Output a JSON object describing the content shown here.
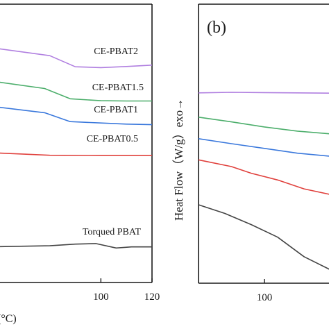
{
  "chart_data": [
    {
      "type": "line",
      "panel": "left",
      "title": "",
      "xlabel": "(°C)",
      "ylabel": "",
      "xlim": [
        60,
        120
      ],
      "ylim": [
        0,
        1
      ],
      "xticks": [
        100,
        120
      ],
      "grid": false,
      "legend": "inline labels at right",
      "series": [
        {
          "name": "CE-PBAT2",
          "color": "#b07fe0",
          "points": [
            [
              60,
              0.84
            ],
            [
              80,
              0.815
            ],
            [
              90,
              0.775
            ],
            [
              100,
              0.772
            ],
            [
              110,
              0.776
            ],
            [
              120,
              0.781
            ]
          ]
        },
        {
          "name": "CE-PBAT1.5",
          "color": "#4cae6b",
          "points": [
            [
              60,
              0.72
            ],
            [
              78,
              0.697
            ],
            [
              88,
              0.66
            ],
            [
              100,
              0.653
            ],
            [
              110,
              0.652
            ],
            [
              120,
              0.652
            ]
          ]
        },
        {
          "name": "CE-PBAT1",
          "color": "#3a78dc",
          "points": [
            [
              60,
              0.63
            ],
            [
              78,
              0.61
            ],
            [
              88,
              0.578
            ],
            [
              100,
              0.573
            ],
            [
              110,
              0.569
            ],
            [
              120,
              0.567
            ]
          ]
        },
        {
          "name": "CE-PBAT0.5",
          "color": "#e0403c",
          "points": [
            [
              60,
              0.465
            ],
            [
              70,
              0.461
            ],
            [
              80,
              0.457
            ],
            [
              100,
              0.456
            ],
            [
              110,
              0.456
            ],
            [
              120,
              0.456
            ]
          ]
        },
        {
          "name": "Torqued PBAT",
          "color": "#444444",
          "points": [
            [
              60,
              0.129
            ],
            [
              80,
              0.132
            ],
            [
              90,
              0.138
            ],
            [
              98,
              0.14
            ],
            [
              106,
              0.124
            ],
            [
              112,
              0.128
            ],
            [
              120,
              0.128
            ]
          ]
        }
      ]
    },
    {
      "type": "line",
      "panel": "right",
      "title": "(b)",
      "xlabel": "",
      "ylabel": "Heat Flow（W/g）exo→",
      "xlim": [
        80,
        120
      ],
      "ylim": [
        0,
        1
      ],
      "xticks": [
        100
      ],
      "grid": false,
      "series": [
        {
          "name": "",
          "color": "#b07fe0",
          "points": [
            [
              80,
              0.682
            ],
            [
              90,
              0.684
            ],
            [
              100,
              0.683
            ],
            [
              110,
              0.682
            ],
            [
              120,
              0.681
            ]
          ]
        },
        {
          "name": "",
          "color": "#4cae6b",
          "points": [
            [
              80,
              0.595
            ],
            [
              90,
              0.578
            ],
            [
              100,
              0.56
            ],
            [
              110,
              0.545
            ],
            [
              120,
              0.535
            ]
          ]
        },
        {
          "name": "",
          "color": "#3a78dc",
          "points": [
            [
              80,
              0.518
            ],
            [
              90,
              0.5
            ],
            [
              100,
              0.483
            ],
            [
              110,
              0.466
            ],
            [
              120,
              0.455
            ]
          ]
        },
        {
          "name": "",
          "color": "#e0403c",
          "points": [
            [
              80,
              0.442
            ],
            [
              90,
              0.418
            ],
            [
              96,
              0.394
            ],
            [
              104,
              0.37
            ],
            [
              112,
              0.338
            ],
            [
              120,
              0.318
            ]
          ]
        },
        {
          "name": "",
          "color": "#444444",
          "points": [
            [
              80,
              0.281
            ],
            [
              88,
              0.25
            ],
            [
              96,
              0.21
            ],
            [
              104,
              0.165
            ],
            [
              112,
              0.095
            ],
            [
              120,
              0.048
            ]
          ]
        }
      ]
    }
  ]
}
